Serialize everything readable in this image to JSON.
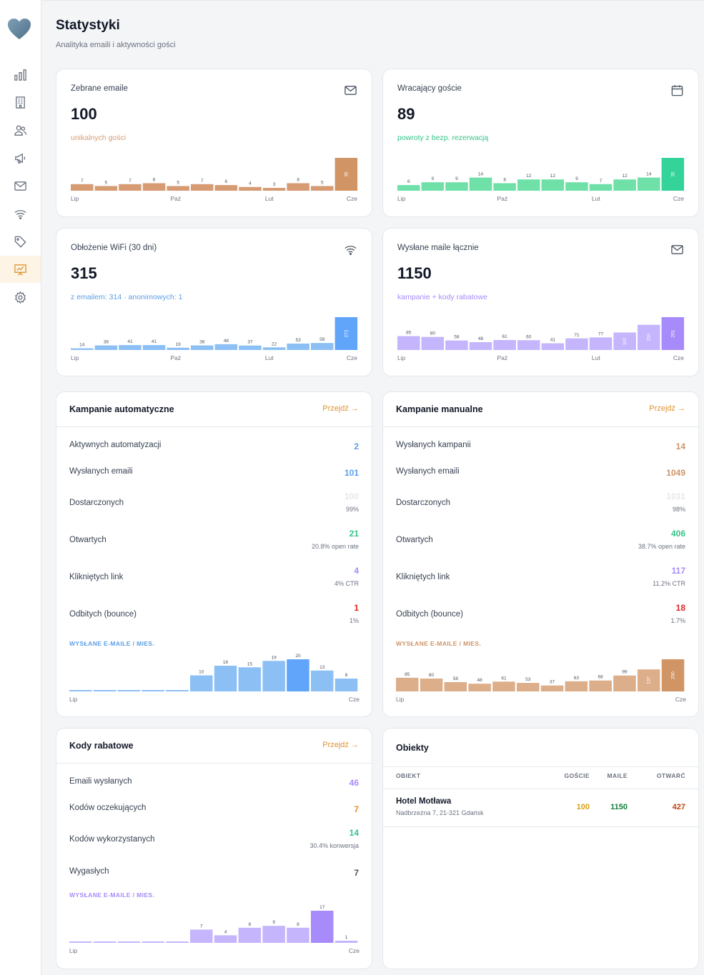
{
  "colors": {
    "orange": "#d79b73",
    "orange_dark": "#d09465",
    "green": "#6ee0a8",
    "green_dark": "#34d399",
    "blue": "#8cc0f5",
    "blue_dark": "#60a5fa",
    "purple": "#c4b5fd",
    "purple_dark": "#a78bfa",
    "accent": "#e0932f"
  },
  "sidebar": {
    "logo": "heart-logo",
    "items": [
      {
        "name": "chart-bars-icon"
      },
      {
        "name": "building-icon"
      },
      {
        "name": "users-icon"
      },
      {
        "name": "megaphone-icon"
      },
      {
        "name": "mail-icon"
      },
      {
        "name": "wifi-icon"
      },
      {
        "name": "tag-icon"
      },
      {
        "name": "presentation-chart-icon",
        "active": true
      },
      {
        "name": "gear-icon"
      }
    ]
  },
  "header": {
    "title": "Statystyki",
    "subtitle": "Analityka emaili i aktywności gości"
  },
  "stats": [
    {
      "label": "Zebrane emaile",
      "value": "100",
      "sub": "unikalnych gości",
      "icon": "mail-icon",
      "chart_data": {
        "type": "bar",
        "values": [
          7,
          5,
          7,
          8,
          5,
          7,
          6,
          4,
          3,
          8,
          5,
          35
        ],
        "x_labels": [
          "Lip",
          "Paź",
          "Lut",
          "Cze"
        ]
      }
    },
    {
      "label": "Wracający goście",
      "value": "89",
      "sub": "powroty z bezp. rezerwacją",
      "icon": "calendar-icon",
      "chart_data": {
        "type": "bar",
        "values": [
          6,
          9,
          9,
          14,
          8,
          12,
          12,
          9,
          7,
          12,
          14,
          35
        ],
        "x_labels": [
          "Lip",
          "Paź",
          "Lut",
          "Cze"
        ]
      }
    },
    {
      "label": "Obłożenie WiFi (30 dni)",
      "value": "315",
      "sub": "z emailem: 314 · anonimowych: 1",
      "icon": "wifi-icon",
      "chart_data": {
        "type": "bar",
        "values": [
          14,
          38,
          41,
          41,
          19,
          38,
          48,
          37,
          22,
          53,
          58,
          272
        ],
        "x_labels": [
          "Lip",
          "Paź",
          "Lut",
          "Cze"
        ]
      }
    },
    {
      "label": "Wysłane maile łącznie",
      "value": "1150",
      "sub": "kampanie + kody rabatowe",
      "icon": "mail-icon",
      "chart_data": {
        "type": "bar",
        "values": [
          85,
          80,
          58,
          48,
          61,
          60,
          41,
          71,
          77,
          107,
          154,
          201
        ],
        "x_labels": [
          "Lip",
          "Paź",
          "Lut",
          "Cze"
        ]
      }
    }
  ],
  "auto": {
    "title": "Kampanie automatyczne",
    "link": "Przejdź →",
    "rows": [
      {
        "label": "Aktywnych automatyzacji",
        "value": "2",
        "note": ""
      },
      {
        "label": "Wysłanych emaili",
        "value": "101",
        "note": ""
      },
      {
        "label": "Dostarczonych",
        "value": "100",
        "note": "99%"
      },
      {
        "label": "Otwartych",
        "value": "21",
        "note": "20.8% open rate"
      },
      {
        "label": "Klikniętych link",
        "value": "4",
        "note": "4% CTR"
      },
      {
        "label": "Odbitych (bounce)",
        "value": "1",
        "note": "1%"
      }
    ],
    "chart_title": "WYSŁANE E-MAILE / MIES.",
    "chart_data": {
      "type": "bar",
      "values": [
        0,
        0,
        0,
        0,
        0,
        10,
        16,
        15,
        19,
        20,
        13,
        8
      ],
      "x_labels": [
        "Lip",
        "Cze"
      ]
    }
  },
  "manual": {
    "title": "Kampanie manualne",
    "link": "Przejdź →",
    "rows": [
      {
        "label": "Wysłanych kampanii",
        "value": "14",
        "note": ""
      },
      {
        "label": "Wysłanych emaili",
        "value": "1049",
        "note": ""
      },
      {
        "label": "Dostarczonych",
        "value": "1031",
        "note": "98%"
      },
      {
        "label": "Otwartych",
        "value": "406",
        "note": "38.7% open rate"
      },
      {
        "label": "Klikniętych link",
        "value": "117",
        "note": "11.2% CTR"
      },
      {
        "label": "Odbitych (bounce)",
        "value": "18",
        "note": "1.7%"
      }
    ],
    "chart_title": "WYSŁANE E-MAILE / MIES.",
    "chart_data": {
      "type": "bar",
      "values": [
        85,
        80,
        58,
        48,
        61,
        53,
        37,
        63,
        68,
        99,
        137,
        200
      ],
      "x_labels": [
        "Lip",
        "Cze"
      ]
    }
  },
  "codes": {
    "title": "Kody rabatowe",
    "link": "Przejdź →",
    "rows": [
      {
        "label": "Emaili wysłanych",
        "value": "46",
        "note": ""
      },
      {
        "label": "Kodów oczekujących",
        "value": "7",
        "note": ""
      },
      {
        "label": "Kodów wykorzystanych",
        "value": "14",
        "note": "30.4% konwersja"
      },
      {
        "label": "Wygasłych",
        "value": "7",
        "note": ""
      }
    ],
    "chart_title": "WYSŁANE E-MAILE / MIES.",
    "chart_data": {
      "type": "bar",
      "values": [
        0,
        0,
        0,
        0,
        0,
        7,
        4,
        8,
        9,
        8,
        17,
        1
      ],
      "x_labels": [
        "Lip",
        "Cze"
      ]
    }
  },
  "objects": {
    "title": "Obiekty",
    "columns": [
      "OBIEKT",
      "GOŚCIE",
      "MAILE",
      "OTWARĆ"
    ],
    "rows": [
      {
        "name": "Hotel Motława",
        "address": "Nadbrzeżna 7, 21-321 Gdańsk",
        "guests": "100",
        "mails": "1150",
        "opens": "427"
      }
    ]
  }
}
